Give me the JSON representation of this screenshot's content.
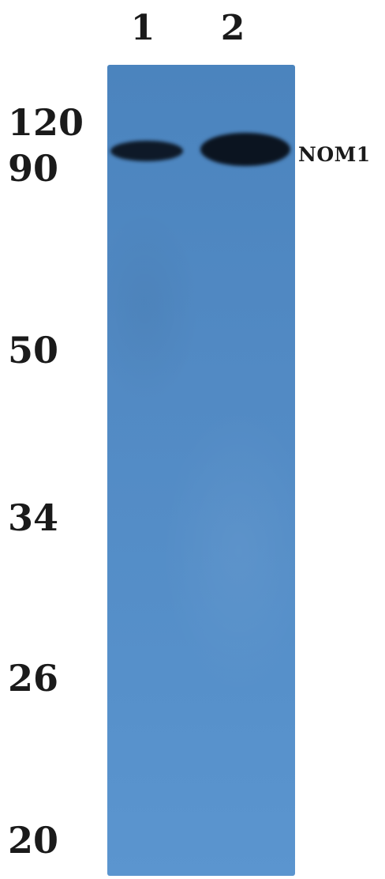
{
  "lanes": [
    "1",
    "2"
  ],
  "molecular_weight_markers": [
    "120",
    "90",
    "50",
    "34",
    "26",
    "20"
  ],
  "band_label": "NOM1",
  "colors": {
    "membrane": "#528ac4",
    "band": "#0b1420",
    "text": "#1a1a1a"
  }
}
